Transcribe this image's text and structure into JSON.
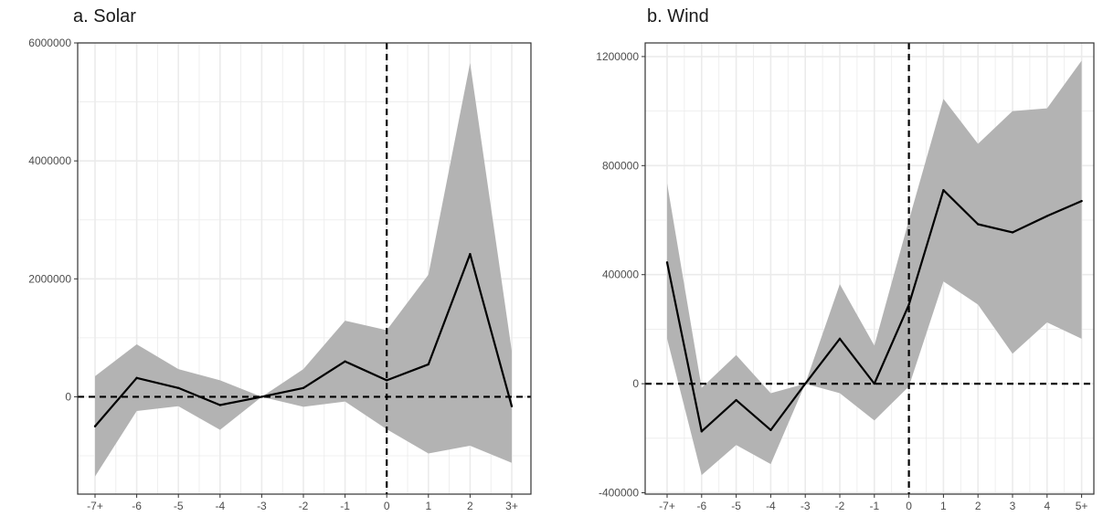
{
  "chart_data": [
    {
      "type": "line",
      "title": "a. Solar",
      "xlabel": "",
      "ylabel": "",
      "categories": [
        "-7+",
        "-6",
        "-5",
        "-4",
        "-3",
        "-2",
        "-1",
        "0",
        "1",
        "2",
        "3+"
      ],
      "series": [
        {
          "estimate": [
            -500000,
            320000,
            150000,
            -140000,
            0,
            150000,
            600000,
            280000,
            550000,
            2420000,
            -160000
          ],
          "ci_lower": [
            -1350000,
            -240000,
            -160000,
            -560000,
            0,
            -170000,
            -80000,
            -550000,
            -960000,
            -830000,
            -1120000
          ],
          "ci_upper": [
            350000,
            890000,
            470000,
            280000,
            0,
            470000,
            1290000,
            1130000,
            2070000,
            5660000,
            780000
          ]
        }
      ],
      "yticks": [
        0,
        2000000,
        4000000,
        6000000
      ],
      "tick_labels": [
        "0",
        "2000000",
        "4000000",
        "6000000"
      ],
      "ylim": [
        -1650000,
        6000000
      ],
      "reference_lines": {
        "x_category": "0",
        "y_value": 0
      },
      "grid": true,
      "colors": {
        "band": "#b3b3b3",
        "line": "#000000",
        "grid": "#ebebeb",
        "border": "#333333"
      }
    },
    {
      "type": "line",
      "title": "b. Wind",
      "xlabel": "",
      "ylabel": "",
      "categories": [
        "-7+",
        "-6",
        "-5",
        "-4",
        "-3",
        "-2",
        "-1",
        "0",
        "1",
        "2",
        "3",
        "4",
        "5+"
      ],
      "series": [
        {
          "estimate": [
            445000,
            -175000,
            -60000,
            -170000,
            0,
            165000,
            0,
            290000,
            710000,
            585000,
            555000,
            615000,
            670000
          ],
          "ci_lower": [
            165000,
            -335000,
            -225000,
            -295000,
            0,
            -35000,
            -135000,
            -10000,
            375000,
            290000,
            110000,
            225000,
            165000
          ],
          "ci_upper": [
            735000,
            -15000,
            105000,
            -35000,
            0,
            365000,
            140000,
            600000,
            1045000,
            880000,
            1000000,
            1010000,
            1185000
          ]
        }
      ],
      "yticks": [
        -400000,
        0,
        400000,
        800000,
        1200000
      ],
      "tick_labels": [
        "-400000",
        "0",
        "400000",
        "800000",
        "1200000"
      ],
      "ylim": [
        -405000,
        1250000
      ],
      "reference_lines": {
        "x_category": "0",
        "y_value": 0
      },
      "grid": true,
      "colors": {
        "band": "#b3b3b3",
        "line": "#000000",
        "grid": "#ebebeb",
        "border": "#333333"
      }
    }
  ]
}
